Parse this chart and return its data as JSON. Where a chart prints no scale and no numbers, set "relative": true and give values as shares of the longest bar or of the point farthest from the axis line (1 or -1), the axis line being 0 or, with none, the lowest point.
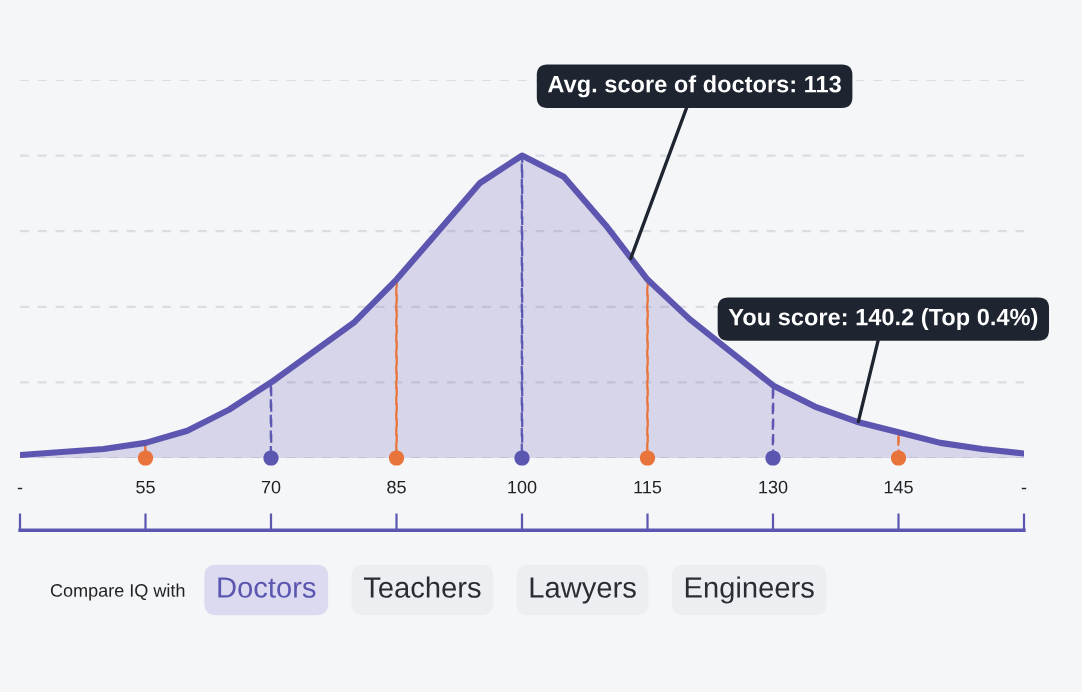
{
  "chart_data": {
    "type": "area",
    "relative": true,
    "grid": "y",
    "xlim": [
      40,
      160
    ],
    "xticks": [
      {
        "value": 40,
        "label": "-"
      },
      55,
      70,
      85,
      100,
      115,
      130,
      145,
      {
        "value": 160,
        "label": "-"
      }
    ],
    "series": [
      {
        "color": "#5d56b0",
        "x": [
          40,
          45,
          50,
          55,
          60,
          65,
          70,
          75,
          80,
          85,
          90,
          95,
          100,
          105,
          110,
          115,
          120,
          125,
          130,
          135,
          140,
          145,
          150,
          155,
          160
        ],
        "values": [
          0.01,
          0.02,
          0.03,
          0.05,
          0.09,
          0.16,
          0.25,
          0.35,
          0.45,
          0.59,
          0.75,
          0.91,
          1.0,
          0.93,
          0.77,
          0.59,
          0.46,
          0.35,
          0.24,
          0.17,
          0.12,
          0.085,
          0.05,
          0.03,
          0.015
        ]
      },
      {
        "type": "bar",
        "line_style": "dashed",
        "x": [
          55,
          70,
          85,
          100,
          115,
          130,
          145
        ],
        "values": [
          0.05,
          0.25,
          0.59,
          1.0,
          0.59,
          0.24,
          0.085
        ],
        "colors": [
          "#e8743b",
          "#5b57b0",
          "#e8743b",
          "#5b57b0",
          "#e8743b",
          "#5b57b0",
          "#e8743b"
        ]
      },
      {
        "type": "scatter",
        "marker": "circle",
        "x": [
          55,
          70,
          85,
          100,
          115,
          130,
          145
        ],
        "values": [
          0,
          0,
          0,
          0,
          0,
          0,
          0
        ],
        "colors": [
          "#e8743b",
          "#5b57b0",
          "#e8743b",
          "#5b57b0",
          "#e8743b",
          "#5b57b0",
          "#e8743b"
        ]
      }
    ],
    "annotations": [
      {
        "text": "Avg. score of doctors: 113",
        "x": 113,
        "y": 0.66
      },
      {
        "text": "You score: 140.2 (Top 0.4%)",
        "x": 140.2,
        "y": 0.12
      },
      "Compare IQ with",
      "Doctors",
      "Teachers",
      "Lawyers",
      "Engineers"
    ]
  }
}
